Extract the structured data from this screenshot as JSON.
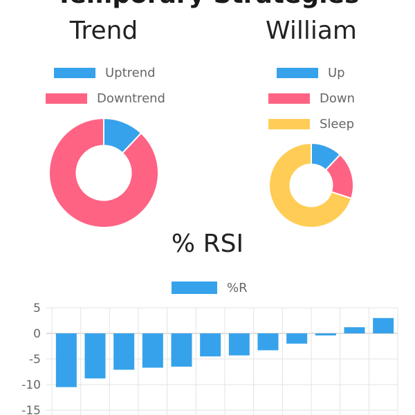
{
  "header": {
    "cut_title": "Temporary Strategies"
  },
  "colors": {
    "blue": "#36A2EB",
    "pink": "#FF6384",
    "yellow": "#FFCD56"
  },
  "chart_data": [
    {
      "type": "pie",
      "variant": "doughnut",
      "title": "Trend",
      "legend": {
        "position": "top"
      },
      "labels": [
        "Uptrend",
        "Downtrend"
      ],
      "values": [
        12,
        88
      ],
      "colors": [
        "#36A2EB",
        "#FF6384"
      ]
    },
    {
      "type": "pie",
      "variant": "doughnut",
      "title": "William",
      "legend": {
        "position": "top"
      },
      "labels": [
        "Up",
        "Down",
        "Sleep"
      ],
      "values": [
        12,
        18,
        70
      ],
      "colors": [
        "#36A2EB",
        "#FF6384",
        "#FFCD56"
      ]
    },
    {
      "type": "bar",
      "title": "% RSI",
      "legend": {
        "position": "top"
      },
      "series": [
        {
          "name": "%R",
          "values": [
            -10.5,
            -8.8,
            -7.1,
            -6.7,
            -6.5,
            -4.5,
            -4.3,
            -3.3,
            -2.0,
            -0.4,
            1.2,
            3.0
          ]
        }
      ],
      "ylim": [
        -15,
        5
      ],
      "yticks": [
        5,
        0,
        -5,
        -10,
        -15
      ],
      "grid": true
    }
  ]
}
